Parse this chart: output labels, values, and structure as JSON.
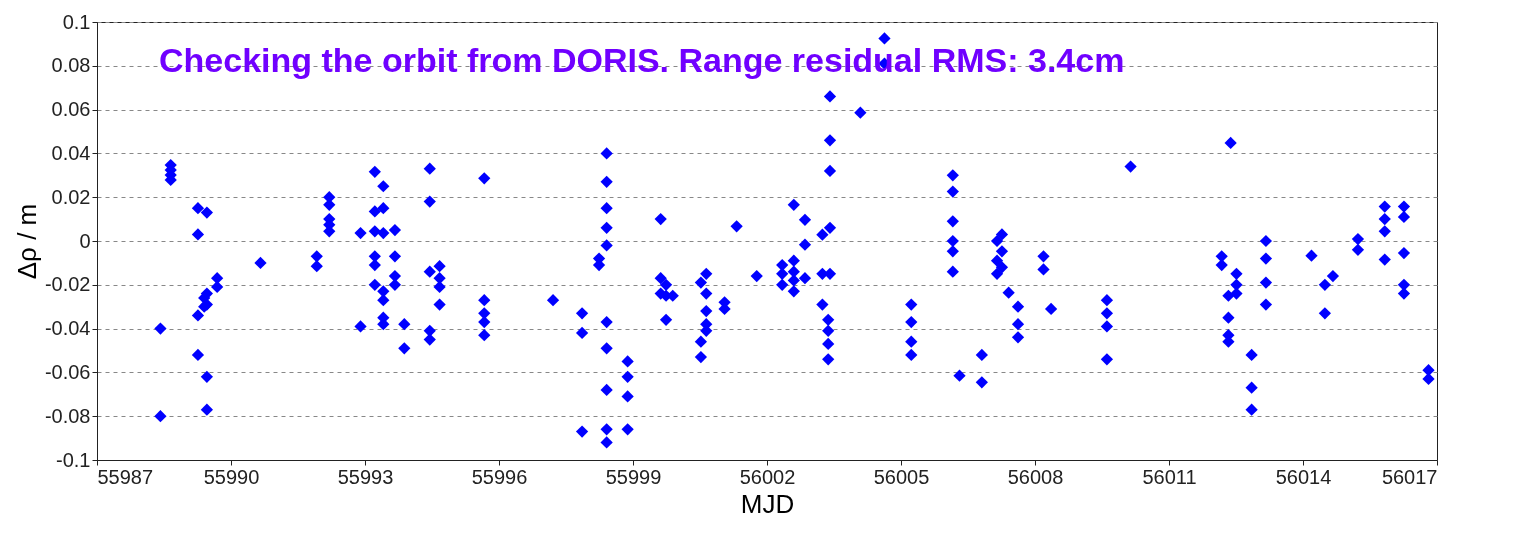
{
  "chart_data": {
    "type": "scatter",
    "xlabel": "MJD",
    "ylabel": "Δρ / m",
    "annotations": [
      "Checking the orbit from DORIS. Range residual RMS: 3.4cm"
    ],
    "marker": "diamond",
    "grid": "y",
    "xlim": [
      55987,
      56017
    ],
    "xticks": [
      55987,
      55990,
      55993,
      55996,
      55999,
      56002,
      56005,
      56008,
      56011,
      56014,
      56017
    ],
    "ylim": [
      -0.1,
      0.1
    ],
    "yticks": [
      -0.1,
      -0.08,
      -0.06,
      -0.04,
      -0.02,
      0,
      0.02,
      0.04,
      0.06,
      0.08,
      0.1
    ],
    "series": [
      {
        "color": "#0000ff",
        "x": [
          55988.42,
          55988.42,
          55988.65,
          55988.65,
          55988.65,
          55988.65,
          55989.26,
          55989.26,
          55989.26,
          55989.26,
          55989.46,
          55989.46,
          55989.46,
          55989.46,
          55989.46,
          55989.4,
          55989.4,
          55989.69,
          55989.69,
          55990.66,
          55991.92,
          55991.92,
          55992.2,
          55992.2,
          55992.2,
          55992.2,
          55992.2,
          55992.9,
          55992.9,
          55993.22,
          55993.22,
          55993.22,
          55993.22,
          55993.22,
          55993.22,
          55993.41,
          55993.41,
          55993.41,
          55993.41,
          55993.41,
          55993.41,
          55993.41,
          55993.67,
          55993.67,
          55993.67,
          55993.67,
          55993.88,
          55993.88,
          55994.45,
          55994.45,
          55994.45,
          55994.45,
          55994.45,
          55994.67,
          55994.67,
          55994.67,
          55994.67,
          55995.67,
          55995.67,
          55995.67,
          55995.67,
          55995.67,
          55997.21,
          55997.86,
          55997.86,
          55997.86,
          55998.24,
          55998.24,
          55998.41,
          55998.41,
          55998.41,
          55998.41,
          55998.41,
          55998.41,
          55998.41,
          55998.41,
          55998.41,
          55998.41,
          55998.88,
          55998.88,
          55998.88,
          55998.88,
          55999.62,
          55999.62,
          55999.62,
          55999.74,
          55999.74,
          55999.74,
          55999.89,
          56000.52,
          56000.52,
          56000.52,
          56000.64,
          56000.64,
          56000.64,
          56000.64,
          56000.64,
          56001.05,
          56001.05,
          56001.32,
          56001.77,
          56002.34,
          56002.34,
          56002.34,
          56002.6,
          56002.6,
          56002.6,
          56002.6,
          56002.6,
          56002.85,
          56002.85,
          56002.85,
          56003.24,
          56003.24,
          56003.24,
          56003.41,
          56003.41,
          56003.41,
          56003.41,
          56003.41,
          56003.37,
          56003.37,
          56003.37,
          56003.37,
          56004.09,
          56004.63,
          56004.63,
          56005.23,
          56005.23,
          56005.23,
          56005.23,
          56006.16,
          56006.16,
          56006.16,
          56006.16,
          56006.16,
          56006.16,
          56006.31,
          56006.81,
          56006.81,
          56007.15,
          56007.15,
          56007.15,
          56007.26,
          56007.26,
          56007.26,
          56007.41,
          56007.62,
          56007.62,
          56007.62,
          56008.19,
          56008.19,
          56008.36,
          56009.61,
          56009.61,
          56009.61,
          56009.61,
          56010.14,
          56012.18,
          56012.18,
          56012.33,
          56012.33,
          56012.33,
          56012.33,
          56012.38,
          56012.51,
          56012.51,
          56012.51,
          56012.85,
          56012.85,
          56012.85,
          56013.17,
          56013.17,
          56013.17,
          56013.17,
          56014.19,
          56014.49,
          56014.49,
          56014.67,
          56015.23,
          56015.23,
          56015.83,
          56015.83,
          56015.83,
          56015.83,
          56016.26,
          56016.26,
          56016.26,
          56016.26,
          56016.26,
          56016.81,
          56016.81
        ],
        "values": [
          -0.04,
          -0.08,
          0.0347,
          0.0324,
          0.0301,
          0.0279,
          0.015,
          0.003,
          -0.034,
          -0.052,
          0.013,
          -0.062,
          -0.077,
          -0.029,
          -0.024,
          -0.03,
          -0.026,
          -0.017,
          -0.021,
          -0.01,
          -0.007,
          -0.0115,
          0.02,
          0.0165,
          0.01,
          0.0074,
          0.0044,
          0.0036,
          -0.039,
          0.0316,
          0.0135,
          0.0044,
          -0.007,
          -0.011,
          -0.02,
          -0.023,
          -0.027,
          -0.035,
          -0.038,
          0.025,
          0.015,
          0.0036,
          0.005,
          -0.007,
          -0.016,
          -0.02,
          -0.038,
          -0.049,
          0.033,
          0.018,
          -0.014,
          -0.041,
          -0.045,
          -0.0115,
          -0.021,
          -0.029,
          -0.017,
          0.0286,
          -0.027,
          -0.033,
          -0.037,
          -0.043,
          -0.027,
          -0.033,
          -0.042,
          -0.087,
          -0.011,
          -0.008,
          0.04,
          0.027,
          0.015,
          0.006,
          -0.002,
          -0.037,
          -0.049,
          -0.068,
          -0.086,
          -0.092,
          -0.055,
          -0.062,
          -0.071,
          -0.086,
          0.01,
          -0.017,
          -0.024,
          -0.036,
          -0.02,
          -0.025,
          -0.025,
          -0.019,
          -0.053,
          -0.046,
          -0.015,
          -0.024,
          -0.032,
          -0.038,
          -0.041,
          -0.028,
          -0.031,
          0.0067,
          -0.016,
          -0.011,
          -0.015,
          -0.02,
          0.0165,
          -0.009,
          -0.014,
          -0.018,
          -0.023,
          0.0097,
          -0.0017,
          -0.017,
          0.0029,
          -0.029,
          -0.015,
          0.066,
          0.046,
          0.032,
          0.006,
          -0.015,
          -0.036,
          -0.041,
          -0.047,
          -0.054,
          0.0586,
          0.0925,
          0.081,
          -0.029,
          -0.037,
          -0.046,
          -0.052,
          0.03,
          0.0226,
          0.009,
          0,
          -0.0047,
          -0.014,
          -0.0615,
          -0.052,
          -0.0645,
          0,
          -0.009,
          -0.015,
          0.003,
          -0.0047,
          -0.012,
          -0.0236,
          -0.03,
          -0.038,
          -0.044,
          -0.007,
          -0.013,
          -0.031,
          -0.027,
          -0.033,
          -0.039,
          -0.054,
          0.034,
          -0.007,
          -0.011,
          -0.025,
          -0.035,
          -0.043,
          -0.046,
          0.0448,
          -0.015,
          -0.02,
          -0.024,
          -0.052,
          -0.067,
          -0.077,
          0,
          -0.008,
          -0.019,
          -0.029,
          -0.0067,
          -0.02,
          -0.033,
          -0.016,
          0.0009,
          -0.004,
          0.0157,
          0.01,
          0.0044,
          -0.0085,
          0.0157,
          0.011,
          -0.0055,
          -0.02,
          -0.024,
          -0.059,
          -0.063
        ]
      }
    ]
  }
}
